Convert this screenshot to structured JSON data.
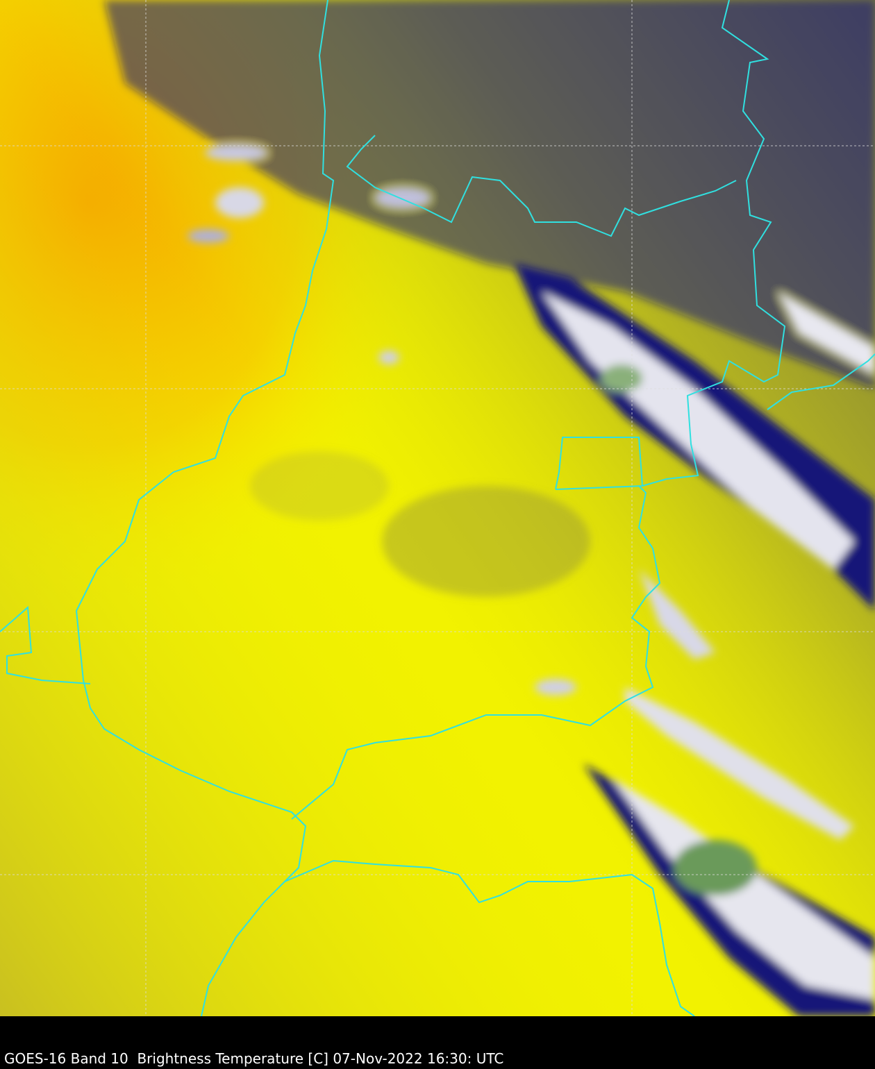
{
  "caption": "GOES-16 Band 10  Brightness Temperature [C] 07-Nov-2022 16:30: UTC",
  "colors": {
    "warm_surface": "#f5f500",
    "hot_surface": "#f5b400",
    "olive_haze": "#8a8a3a",
    "cloud_edge": "#12127a",
    "cloud_cold": "#e8e8f0",
    "cloud_coldest": "#4a8a3a",
    "borders": "#30e0e0",
    "grid": "#dddddd",
    "background": "#000000"
  }
}
